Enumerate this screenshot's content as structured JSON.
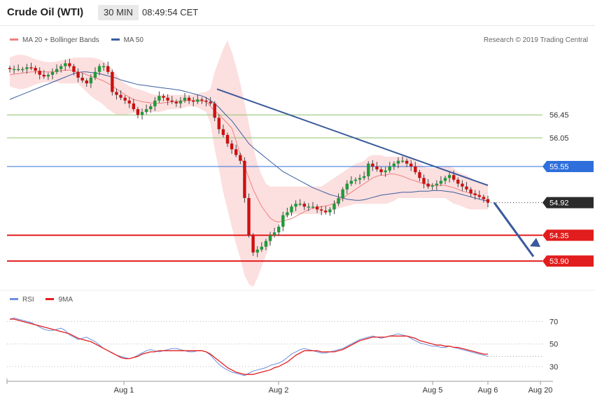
{
  "header": {
    "title": "Crude Oil (WTI)",
    "timeframe": "30 MIN",
    "time": "08:49:54 CET"
  },
  "legend": {
    "bollinger_label": "MA 20 + Bollinger Bands",
    "ma50_label": "MA 50",
    "credit": "Research © 2019 Trading Central"
  },
  "rsi_legend": {
    "rsi_label": "RSI",
    "ma_label": "9MA"
  },
  "colors": {
    "band_fill": "#fcd9d9",
    "ma20": "#f08080",
    "ma50": "#3b5fa0",
    "candle_up": "#1f9a3a",
    "candle_down": "#cc1111",
    "resistance_line": "#8cc36b",
    "pivot_line": "#2f6fdc",
    "support_line": "#e21d1d",
    "trend": "#3a5a9b",
    "rsi": "#6b8fe0",
    "rsi_ma": "#e21d1d"
  },
  "chart_data": [
    {
      "type": "candlestick",
      "title": "Crude Oil (WTI)",
      "interval": "30 MIN",
      "ylim": [
        53.45,
        57.6
      ],
      "series_names": [
        "MA 20 + Bollinger Bands",
        "MA 50"
      ],
      "x_tick_labels": [
        "Aug 1",
        "Aug 2",
        "Aug 5",
        "Aug 6",
        "Aug 20"
      ],
      "levels": [
        {
          "value": 56.45,
          "label": "56.45",
          "kind": "resistance"
        },
        {
          "value": 56.05,
          "label": "56.05",
          "kind": "resistance"
        },
        {
          "value": 55.55,
          "label": "55.55",
          "kind": "pivot"
        },
        {
          "value": 54.92,
          "label": "54.92",
          "kind": "last"
        },
        {
          "value": 54.35,
          "label": "54.35",
          "kind": "support"
        },
        {
          "value": 53.9,
          "label": "53.90",
          "kind": "support"
        }
      ],
      "close": [
        57.25,
        57.25,
        57.25,
        57.25,
        57.28,
        57.27,
        57.22,
        57.15,
        57.12,
        57.15,
        57.2,
        57.25,
        57.3,
        57.35,
        57.3,
        57.2,
        57.1,
        57.05,
        57.0,
        57.1,
        57.2,
        57.3,
        57.3,
        57.2,
        56.85,
        56.8,
        56.75,
        56.7,
        56.65,
        56.55,
        56.45,
        56.5,
        56.55,
        56.6,
        56.7,
        56.78,
        56.75,
        56.7,
        56.68,
        56.65,
        56.7,
        56.75,
        56.7,
        56.68,
        56.72,
        56.7,
        56.68,
        56.65,
        56.4,
        56.2,
        56.1,
        55.95,
        55.85,
        55.75,
        55.65,
        55.0,
        54.35,
        54.05,
        54.1,
        54.15,
        54.25,
        54.35,
        54.4,
        54.5,
        54.7,
        54.75,
        54.85,
        54.9,
        54.9,
        54.85,
        54.85,
        54.85,
        54.8,
        54.78,
        54.75,
        54.8,
        54.9,
        55.0,
        55.15,
        55.25,
        55.3,
        55.32,
        55.35,
        55.38,
        55.6,
        55.55,
        55.5,
        55.45,
        55.48,
        55.55,
        55.6,
        55.65,
        55.65,
        55.6,
        55.55,
        55.45,
        55.35,
        55.25,
        55.2,
        55.22,
        55.25,
        55.3,
        55.35,
        55.4,
        55.32,
        55.25,
        55.2,
        55.15,
        55.08,
        55.05,
        55.02,
        54.98,
        54.92
      ],
      "ma20": [
        57.15,
        57.16,
        57.17,
        57.18,
        57.19,
        57.2,
        57.2,
        57.2,
        57.2,
        57.2,
        57.2,
        57.21,
        57.22,
        57.23,
        57.23,
        57.22,
        57.2,
        57.18,
        57.15,
        57.12,
        57.1,
        57.07,
        57.04,
        57.0,
        56.96,
        56.9,
        56.85,
        56.8,
        56.76,
        56.72,
        56.7,
        56.68,
        56.67,
        56.66,
        56.65,
        56.65,
        56.66,
        56.67,
        56.68,
        56.68,
        56.69,
        56.7,
        56.7,
        56.7,
        56.7,
        56.69,
        56.68,
        56.6,
        56.52,
        56.46,
        56.38,
        56.3,
        56.22,
        56.0,
        55.75,
        55.55,
        55.35,
        55.15,
        55.0,
        54.85,
        54.75,
        54.65,
        54.6,
        54.58,
        54.6,
        54.62,
        54.64,
        54.68,
        54.72,
        54.76,
        54.8,
        54.82,
        54.84,
        54.85,
        54.86,
        54.88,
        54.9,
        54.95,
        55.0,
        55.05,
        55.1,
        55.15,
        55.2,
        55.25,
        55.3,
        55.35,
        55.38,
        55.4,
        55.4,
        55.42,
        55.42,
        55.4,
        55.38,
        55.35,
        55.32,
        55.3,
        55.27,
        55.25,
        55.23,
        55.22,
        55.22,
        55.22,
        55.22,
        55.2,
        55.18,
        55.15,
        55.12,
        55.1,
        55.08,
        55.06,
        55.05
      ],
      "bb_upper": [
        57.45,
        57.48,
        57.5,
        57.5,
        57.48,
        57.45,
        57.42,
        57.4,
        57.38,
        57.37,
        57.37,
        57.38,
        57.4,
        57.42,
        57.43,
        57.45,
        57.45,
        57.45,
        57.45,
        57.45,
        57.44,
        57.42,
        57.38,
        57.32,
        57.25,
        57.15,
        57.05,
        57.0,
        56.95,
        56.92,
        56.9,
        56.88,
        56.85,
        56.82,
        56.8,
        56.8,
        56.8,
        56.8,
        56.8,
        56.8,
        56.8,
        56.8,
        56.8,
        56.8,
        56.82,
        56.84,
        56.85,
        56.9,
        57.2,
        57.4,
        57.6,
        57.75,
        57.55,
        57.3,
        57.0,
        56.65,
        56.3,
        55.9,
        55.6,
        55.4,
        55.25,
        55.2,
        55.2,
        55.2,
        55.2,
        55.2,
        55.2,
        55.2,
        55.2,
        55.2,
        55.2,
        55.2,
        55.2,
        55.2,
        55.25,
        55.3,
        55.35,
        55.4,
        55.45,
        55.5,
        55.55,
        55.6,
        55.62,
        55.65,
        55.72,
        55.75,
        55.75,
        55.75,
        55.72,
        55.72,
        55.72,
        55.72,
        55.72,
        55.72,
        55.72,
        55.65,
        55.6,
        55.55,
        55.52,
        55.52,
        55.52,
        55.55,
        55.55,
        55.55,
        55.52,
        55.45,
        55.42,
        55.4,
        55.35,
        55.3,
        55.28,
        55.25,
        55.25
      ],
      "bb_lower": [
        56.95,
        56.92,
        56.9,
        56.9,
        56.92,
        56.95,
        56.98,
        57.0,
        57.02,
        57.02,
        57.02,
        57.02,
        57.0,
        57.0,
        57.0,
        57.0,
        57.0,
        56.92,
        56.85,
        56.78,
        56.72,
        56.68,
        56.62,
        56.55,
        56.5,
        56.45,
        56.45,
        56.45,
        56.47,
        56.48,
        56.48,
        56.5,
        56.5,
        56.5,
        56.5,
        56.5,
        56.52,
        56.54,
        56.55,
        56.55,
        56.56,
        56.58,
        56.6,
        56.6,
        56.58,
        56.54,
        56.5,
        56.3,
        55.85,
        55.5,
        55.1,
        54.8,
        54.5,
        54.2,
        53.95,
        53.65,
        53.5,
        53.45,
        53.6,
        53.8,
        54.0,
        54.2,
        54.4,
        54.55,
        54.62,
        54.68,
        54.72,
        54.72,
        54.72,
        54.72,
        54.72,
        54.72,
        54.72,
        54.72,
        54.75,
        54.78,
        54.8,
        54.82,
        54.84,
        54.86,
        54.88,
        54.9,
        54.9,
        54.9,
        54.9,
        54.9,
        54.9,
        54.9,
        54.9,
        54.92,
        54.95,
        55.0,
        55.0,
        55.0,
        55.0,
        55.0,
        55.0,
        55.0,
        55.0,
        55.0,
        55.0,
        55.0,
        55.0,
        54.95,
        54.9,
        54.88,
        54.85,
        54.82,
        54.8,
        54.8,
        54.8,
        54.8,
        54.8
      ],
      "ma50": [
        56.72,
        56.75,
        56.78,
        56.81,
        56.84,
        56.87,
        56.9,
        56.93,
        56.96,
        56.99,
        57.02,
        57.05,
        57.08,
        57.11,
        57.14,
        57.17,
        57.19,
        57.2,
        57.2,
        57.19,
        57.18,
        57.17,
        57.15,
        57.13,
        57.11,
        57.09,
        57.06,
        57.04,
        57.02,
        57.0,
        56.98,
        56.97,
        56.96,
        56.95,
        56.94,
        56.93,
        56.92,
        56.91,
        56.9,
        56.89,
        56.88,
        56.86,
        56.84,
        56.82,
        56.8,
        56.78,
        56.75,
        56.7,
        56.65,
        56.58,
        56.5,
        56.42,
        56.35,
        56.25,
        56.15,
        56.05,
        55.95,
        55.88,
        55.82,
        55.76,
        55.7,
        55.64,
        55.58,
        55.52,
        55.46,
        55.42,
        55.38,
        55.34,
        55.3,
        55.26,
        55.22,
        55.18,
        55.15,
        55.12,
        55.09,
        55.06,
        55.04,
        55.02,
        55.0,
        54.98,
        54.97,
        54.96,
        54.96,
        54.97,
        54.99,
        55.01,
        55.03,
        55.05,
        55.06,
        55.07,
        55.08,
        55.09,
        55.1,
        55.1,
        55.1,
        55.11,
        55.12,
        55.12,
        55.12,
        55.13,
        55.13,
        55.13,
        55.12,
        55.11,
        55.1,
        55.08,
        55.06,
        55.04,
        55.02,
        55.0,
        54.98,
        54.96,
        54.95
      ]
    },
    {
      "type": "line",
      "title": "RSI",
      "series_names": [
        "RSI",
        "9MA"
      ],
      "ylim": [
        20,
        82
      ],
      "y_ticks": [
        30,
        50,
        70
      ],
      "y_tick_labels": [
        "30",
        "50",
        "70"
      ],
      "rsi": [
        72,
        73,
        72,
        71,
        70,
        69,
        67,
        65,
        63,
        62,
        62,
        63,
        64,
        62,
        58,
        56,
        54,
        55,
        56,
        54,
        52,
        49,
        46,
        44,
        42,
        40,
        39,
        38,
        37,
        38,
        40,
        42,
        44,
        45,
        44,
        43,
        44,
        45,
        46,
        46,
        45,
        44,
        43,
        43,
        44,
        44,
        43,
        40,
        36,
        32,
        29,
        27,
        25,
        24,
        23,
        22,
        24,
        26,
        27,
        28,
        29,
        31,
        32,
        33,
        35,
        38,
        41,
        43,
        45,
        46,
        45,
        44,
        43,
        42,
        42,
        43,
        44,
        45,
        46,
        48,
        50,
        52,
        54,
        55,
        56,
        57,
        56,
        55,
        56,
        57,
        58,
        59,
        58,
        57,
        55,
        53,
        51,
        50,
        49,
        48,
        48,
        47,
        47,
        48,
        47,
        46,
        45,
        44,
        43,
        42,
        41,
        40,
        39
      ],
      "rsi_ma": [
        72,
        72,
        71,
        70,
        69,
        68,
        67,
        66,
        65,
        64,
        63,
        62,
        61,
        60,
        59,
        57,
        55,
        54,
        53,
        52,
        50,
        48,
        46,
        44,
        42,
        40,
        38,
        37,
        37,
        38,
        39,
        41,
        42,
        43,
        43,
        44,
        44,
        44,
        44,
        44,
        44,
        44,
        44,
        44,
        44,
        44,
        43,
        41,
        38,
        35,
        32,
        29,
        27,
        25,
        24,
        23,
        23,
        23,
        24,
        25,
        26,
        27,
        29,
        30,
        32,
        34,
        37,
        40,
        42,
        44,
        44,
        44,
        44,
        43,
        43,
        43,
        43,
        44,
        45,
        47,
        49,
        51,
        53,
        54,
        55,
        56,
        56,
        56,
        56,
        57,
        57,
        57,
        57,
        57,
        56,
        55,
        53,
        52,
        51,
        50,
        49,
        49,
        48,
        48,
        47,
        47,
        46,
        45,
        44,
        43,
        42,
        41,
        41
      ]
    }
  ]
}
